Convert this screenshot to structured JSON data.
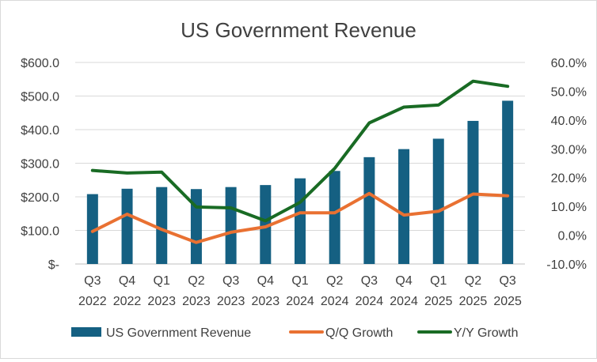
{
  "chart_data": {
    "type": "bar",
    "title": "US Government Revenue",
    "categories": [
      [
        "Q3",
        "2022"
      ],
      [
        "Q4",
        "2022"
      ],
      [
        "Q1",
        "2023"
      ],
      [
        "Q2",
        "2023"
      ],
      [
        "Q3",
        "2023"
      ],
      [
        "Q4",
        "2023"
      ],
      [
        "Q1",
        "2024"
      ],
      [
        "Q2",
        "2024"
      ],
      [
        "Q3",
        "2024"
      ],
      [
        "Q4",
        "2024"
      ],
      [
        "Q1",
        "2025"
      ],
      [
        "Q2",
        "2025"
      ],
      [
        "Q3",
        "2025"
      ]
    ],
    "y_left": {
      "ylim": [
        0,
        600
      ],
      "ticks": [
        0,
        100,
        200,
        300,
        400,
        500,
        600
      ],
      "tick_labels": [
        "$-",
        "$100.0",
        "$200.0",
        "$300.0",
        "$400.0",
        "$500.0",
        "$600.0"
      ]
    },
    "y_right": {
      "ylim": [
        -10,
        60
      ],
      "ticks": [
        -10,
        0,
        10,
        20,
        30,
        40,
        50,
        60
      ],
      "tick_labels": [
        "-10.0%",
        "0.0%",
        "10.0%",
        "20.0%",
        "30.0%",
        "40.0%",
        "50.0%",
        "60.0%"
      ]
    },
    "series": [
      {
        "name": "US Government Revenue",
        "type": "bar",
        "axis": "left",
        "color": "#156082",
        "values": [
          208,
          224,
          229,
          223,
          229,
          235,
          255,
          277,
          318,
          342,
          373,
          426,
          486
        ]
      },
      {
        "name": "Q/Q Growth",
        "type": "line",
        "axis": "right",
        "color": "#E97132",
        "values": [
          1.3,
          7.3,
          2.0,
          -2.5,
          1.0,
          2.9,
          7.8,
          7.8,
          14.5,
          7.0,
          8.3,
          14.3,
          13.7
        ]
      },
      {
        "name": "Y/Y Growth",
        "type": "line",
        "axis": "right",
        "color": "#196B24",
        "values": [
          22.5,
          21.6,
          21.9,
          9.8,
          9.5,
          5.0,
          11.4,
          23.2,
          39.0,
          44.5,
          45.2,
          53.5,
          51.7
        ]
      }
    ],
    "grid": true,
    "legend_position": "bottom"
  }
}
